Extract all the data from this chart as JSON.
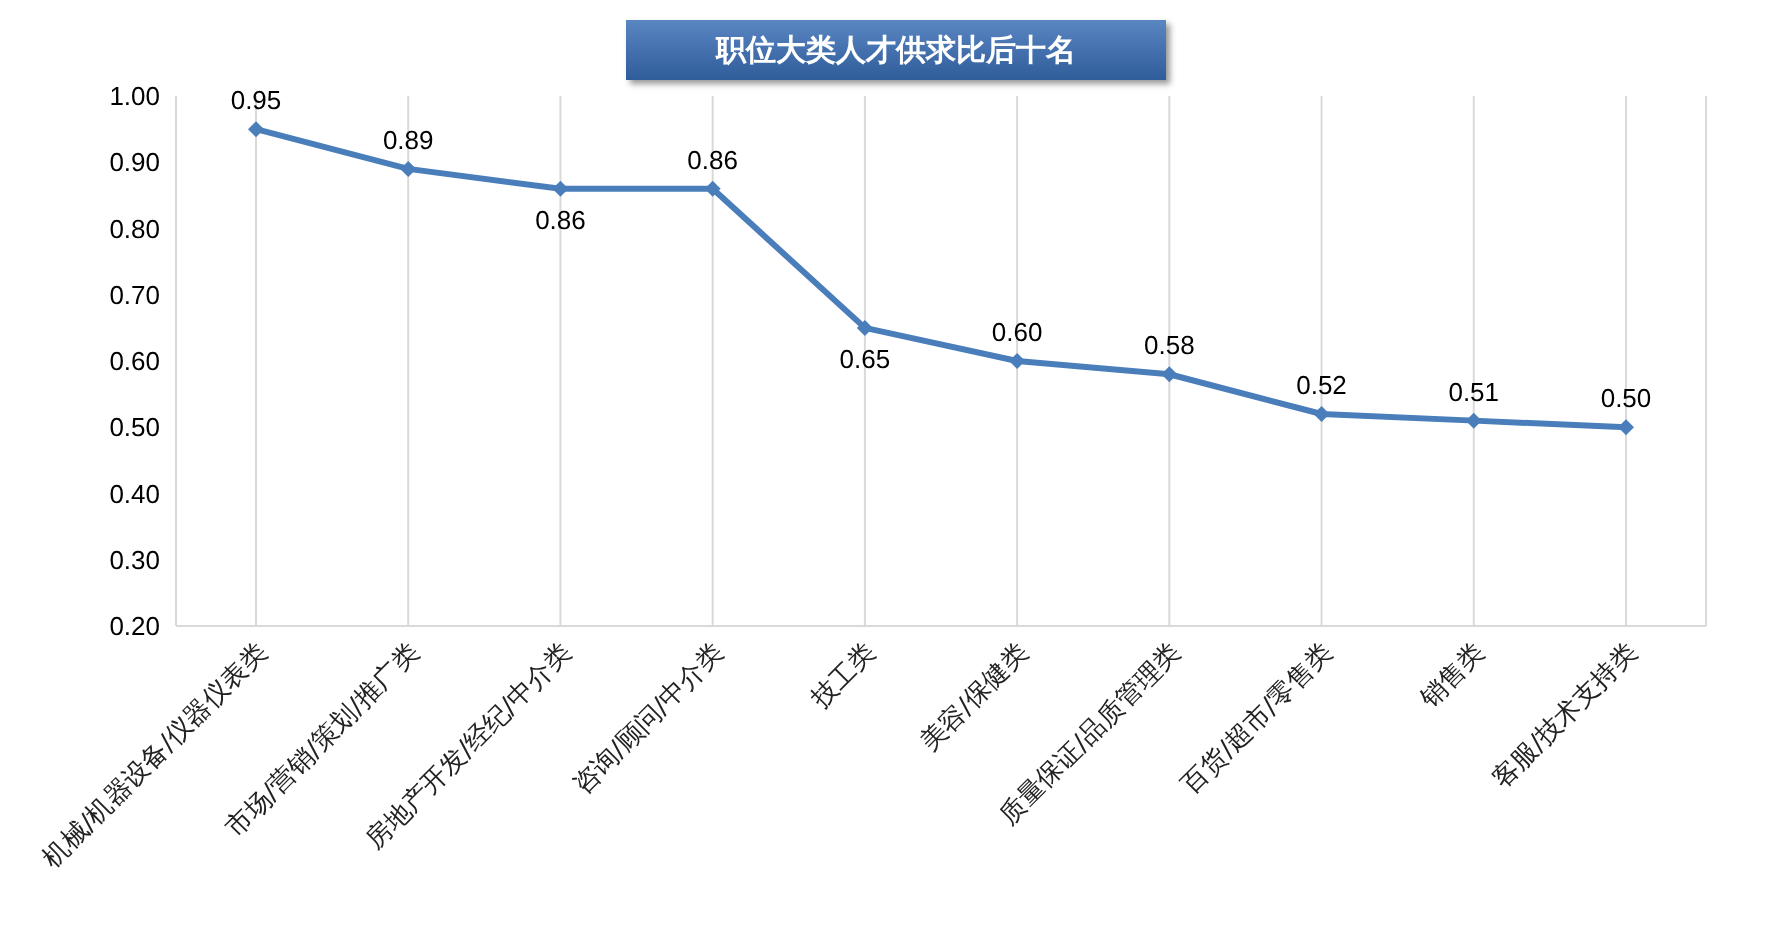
{
  "chart_data": {
    "type": "line",
    "title": "职位大类人才供求比后十名",
    "categories": [
      "机械/机器设备/仪器仪表类",
      "市场/营销/策划/推广类",
      "房地产开发/经纪/中介类",
      "咨询/顾问/中介类",
      "技工类",
      "美容/保健类",
      "质量保证/品质管理类",
      "百货/超市/零售类",
      "销售类",
      "客服/技术支持类"
    ],
    "values": [
      0.95,
      0.89,
      0.86,
      0.86,
      0.65,
      0.6,
      0.58,
      0.52,
      0.51,
      0.5
    ],
    "color": "#4a7ebb",
    "ylim": [
      0.2,
      1.0
    ],
    "yticks": [
      {
        "value": 0.2,
        "label": "0.20"
      },
      {
        "value": 0.3,
        "label": "0.30"
      },
      {
        "value": 0.4,
        "label": "0.40"
      },
      {
        "value": 0.5,
        "label": "0.50"
      },
      {
        "value": 0.6,
        "label": "0.60"
      },
      {
        "value": 0.7,
        "label": "0.70"
      },
      {
        "value": 0.8,
        "label": "0.80"
      },
      {
        "value": 0.9,
        "label": "0.90"
      },
      {
        "value": 1.0,
        "label": "1.00"
      }
    ],
    "value_labels": [
      "0.95",
      "0.89",
      "0.86",
      "0.86",
      "0.65",
      "0.60",
      "0.58",
      "0.52",
      "0.51",
      "0.50"
    ],
    "grid": "x",
    "marker": "diamond",
    "line_style": "solid"
  }
}
